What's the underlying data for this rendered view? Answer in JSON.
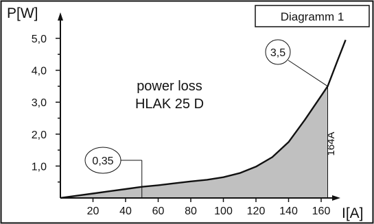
{
  "chart_data": {
    "type": "line",
    "title_box": "Diagramm 1",
    "annotation_lines": [
      "power loss",
      "HLAK 25 D"
    ],
    "ylabel": "P[W]",
    "xlabel": "I[A]",
    "xlim": [
      0,
      180
    ],
    "ylim": [
      0,
      5.5
    ],
    "x_ticks": [
      20,
      40,
      60,
      80,
      100,
      120,
      140,
      160
    ],
    "x_tick_labels": [
      "20",
      "40",
      "60",
      "80",
      "100",
      "120",
      "140",
      "160"
    ],
    "y_ticks": [
      1,
      2,
      3,
      4,
      5
    ],
    "y_tick_labels": [
      "1,0",
      "2,0",
      "3,0",
      "4,0",
      "5,0"
    ],
    "series": [
      {
        "x": [
          0,
          10,
          20,
          30,
          40,
          50,
          60,
          70,
          80,
          90,
          100,
          110,
          120,
          130,
          140,
          150,
          160,
          164,
          170,
          175
        ],
        "y": [
          0,
          0.07,
          0.14,
          0.21,
          0.28,
          0.35,
          0.4,
          0.46,
          0.52,
          0.57,
          0.65,
          0.78,
          0.98,
          1.28,
          1.75,
          2.45,
          3.2,
          3.5,
          4.3,
          4.95
        ]
      }
    ],
    "shaded_area_x_range": [
      0,
      164
    ],
    "callouts": [
      {
        "label": "0,35",
        "x": 50,
        "y": 0.35
      },
      {
        "label": "3,5",
        "x": 164,
        "y": 3.5
      }
    ],
    "vertical_marker_label": "164A",
    "colors": {
      "shade": "#c0c0c0",
      "line": "#111111",
      "frame": "#111111",
      "background": "#ffffff"
    }
  }
}
